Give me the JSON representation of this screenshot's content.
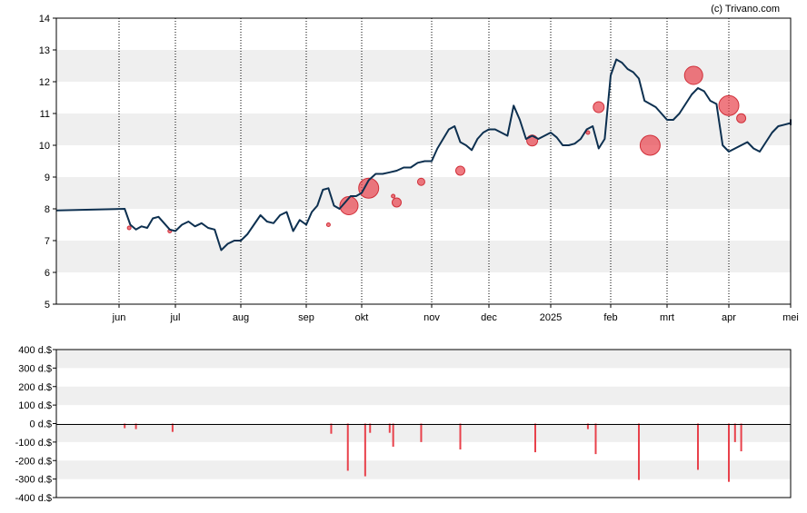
{
  "credit": "(c) Trivano.com",
  "chart_data": [
    {
      "type": "line",
      "x_categories": [
        "jun",
        "jul",
        "aug",
        "sep",
        "okt",
        "nov",
        "dec",
        "2025",
        "feb",
        "mrt",
        "apr",
        "mei"
      ],
      "y_ticks": [
        "5",
        "6",
        "7",
        "8",
        "9",
        "10",
        "11",
        "12",
        "13",
        "14"
      ],
      "ylim": [
        5,
        14
      ],
      "grid": true,
      "colors": {
        "line": "#0d3050",
        "bubble": "#e8414b",
        "band": "#efefef"
      },
      "series": [
        {
          "x": [
            0.0,
            0.1,
            0.2,
            0.3,
            0.4,
            0.5,
            0.6,
            0.7,
            0.8,
            0.9,
            1.0,
            1.1,
            1.2,
            1.3,
            1.4,
            1.5,
            1.6,
            1.7,
            1.8,
            1.9,
            2.0,
            2.1,
            2.2,
            2.3,
            2.4,
            2.5,
            2.6,
            2.7,
            2.8,
            2.9,
            3.0,
            3.1,
            3.2,
            3.3,
            3.4,
            3.5,
            3.6,
            3.7,
            3.8,
            3.9,
            4.0,
            4.1,
            4.2,
            4.3,
            4.4,
            4.5,
            4.6,
            4.7,
            4.8,
            4.9,
            5.0,
            5.1,
            5.2,
            5.3,
            5.4,
            5.5,
            5.6,
            5.7,
            5.8,
            5.9,
            6.0,
            6.1,
            6.2,
            6.3,
            6.4,
            6.5,
            6.6,
            6.7,
            6.8,
            6.9,
            7.0,
            7.1,
            7.2,
            7.3,
            7.4,
            7.5,
            7.6,
            7.7,
            7.8,
            7.9,
            8.0,
            8.1,
            8.2,
            8.3,
            8.4,
            8.5,
            8.6,
            8.7,
            8.8,
            8.9,
            9.0,
            9.1,
            9.2,
            9.3,
            9.4,
            9.5,
            9.6,
            9.7,
            9.8,
            9.9,
            10.0,
            10.1,
            10.2,
            10.3,
            10.4,
            10.5,
            10.6,
            10.7,
            10.8,
            10.9,
            11.0,
            11.1,
            11.2,
            11.3,
            11.4,
            11.5,
            11.6,
            11.7,
            11.8,
            11.9,
            12.0,
            12.1
          ],
          "values": [
            7.95,
            8.0,
            7.5,
            7.35,
            7.45,
            7.4,
            7.7,
            7.75,
            7.55,
            7.35,
            7.3,
            7.5,
            7.6,
            7.45,
            7.55,
            7.4,
            7.35,
            6.7,
            6.9,
            7.0,
            7.0,
            7.2,
            7.5,
            7.8,
            7.6,
            7.55,
            7.8,
            7.9,
            7.3,
            7.65,
            7.5,
            7.9,
            8.1,
            8.6,
            8.65,
            8.1,
            8.0,
            8.2,
            8.4,
            8.4,
            8.5,
            8.9,
            9.1,
            9.1,
            9.15,
            9.2,
            9.3,
            9.3,
            9.45,
            9.5,
            9.5,
            9.9,
            10.2,
            10.5,
            10.6,
            10.1,
            10.0,
            9.85,
            10.2,
            10.4,
            10.5,
            10.5,
            10.4,
            10.3,
            11.25,
            10.8,
            10.2,
            10.3,
            10.2,
            10.3,
            10.4,
            10.25,
            10.0,
            10.0,
            10.05,
            10.2,
            10.5,
            10.6,
            9.9,
            10.2,
            12.2,
            12.7,
            12.6,
            12.4,
            12.3,
            12.1,
            11.4,
            11.3,
            11.2,
            11.0,
            10.8,
            10.8,
            11.0,
            11.3,
            11.6,
            11.8,
            11.7,
            11.4,
            11.3,
            10.0,
            9.8,
            9.9,
            10.0,
            10.1,
            9.9,
            9.8,
            10.1,
            10.4,
            10.6,
            10.65,
            10.7,
            10.75,
            10.7,
            10.7,
            10.7,
            10.75,
            10.7,
            10.75,
            10.8,
            10.65,
            10.65,
            10.7
          ]
        }
      ],
      "bubbles": [
        {
          "x": 0.18,
          "y": 7.4,
          "size": 2
        },
        {
          "x": 0.9,
          "y": 7.3,
          "size": 2
        },
        {
          "x": 3.4,
          "y": 7.5,
          "size": 2
        },
        {
          "x": 3.77,
          "y": 8.1,
          "size": 10
        },
        {
          "x": 4.1,
          "y": 8.65,
          "size": 11
        },
        {
          "x": 4.45,
          "y": 8.4,
          "size": 2
        },
        {
          "x": 4.5,
          "y": 8.2,
          "size": 5
        },
        {
          "x": 4.85,
          "y": 8.85,
          "size": 4
        },
        {
          "x": 5.5,
          "y": 9.2,
          "size": 5
        },
        {
          "x": 6.7,
          "y": 10.15,
          "size": 6
        },
        {
          "x": 7.62,
          "y": 10.4,
          "size": 2
        },
        {
          "x": 7.8,
          "y": 11.2,
          "size": 6
        },
        {
          "x": 8.7,
          "y": 10.0,
          "size": 11
        },
        {
          "x": 9.43,
          "y": 12.2,
          "size": 10
        },
        {
          "x": 10.0,
          "y": 11.25,
          "size": 11
        },
        {
          "x": 10.2,
          "y": 10.85,
          "size": 5
        }
      ]
    },
    {
      "type": "bar",
      "y_ticks": [
        "400 d.$",
        "300 d.$",
        "200 d.$",
        "100 d.$",
        "0 d.$",
        "-100 d.$",
        "-200 d.$",
        "-300 d.$",
        "-400 d.$"
      ],
      "ylim": [
        -400,
        400
      ],
      "grid": true,
      "colors": {
        "bar": "#e8414b"
      },
      "x": [
        0.1,
        0.3,
        0.95,
        3.45,
        3.75,
        4.05,
        4.12,
        4.4,
        4.45,
        4.85,
        5.5,
        6.75,
        7.62,
        7.75,
        8.5,
        9.5,
        10.0,
        10.1,
        10.2
      ],
      "values": [
        -25,
        -30,
        -45,
        -55,
        -255,
        -285,
        -50,
        -50,
        -125,
        -100,
        -140,
        -155,
        -30,
        -165,
        -305,
        -250,
        -315,
        -100,
        -150
      ]
    }
  ]
}
